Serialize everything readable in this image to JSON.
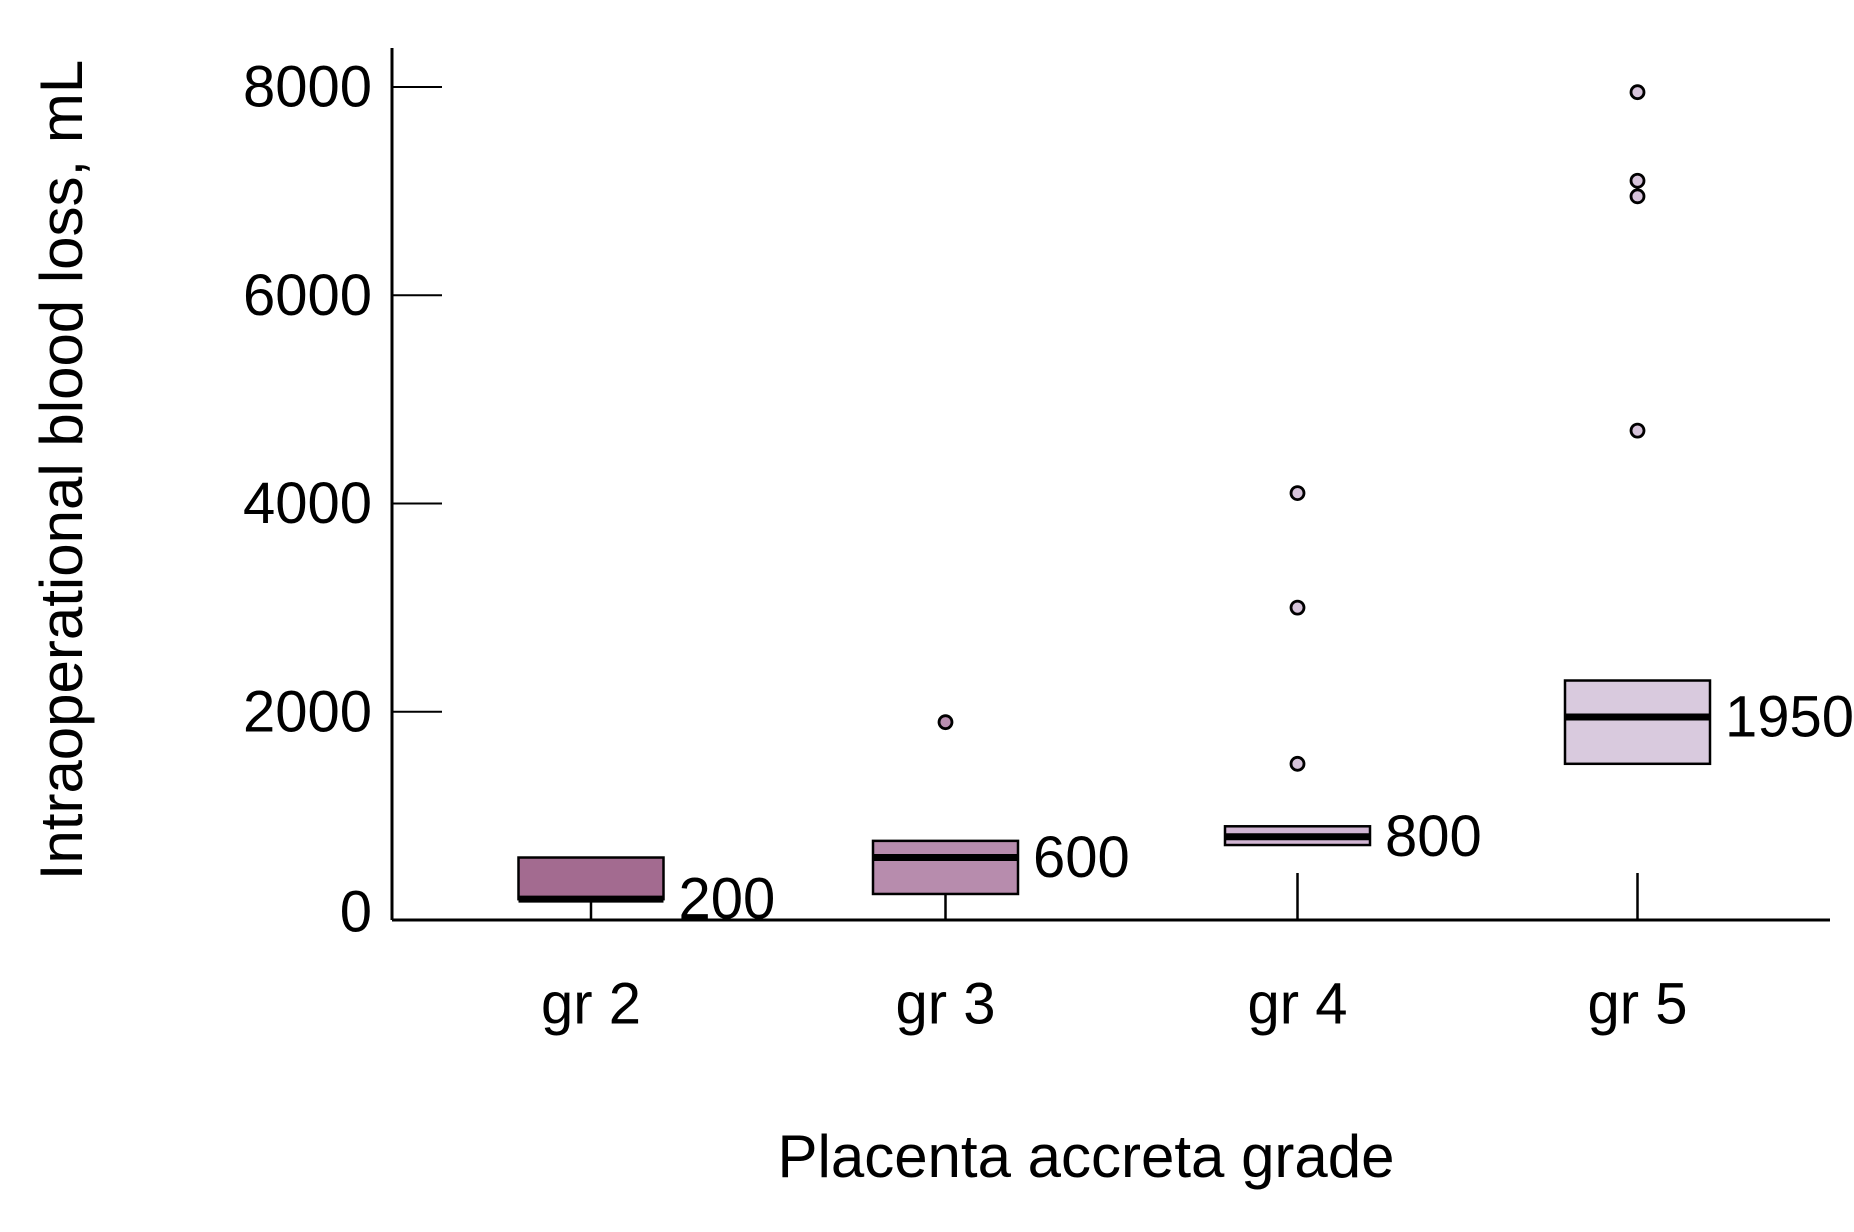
{
  "figure": {
    "background": "#ffffff",
    "line_color": "#000000",
    "text_color": "#000000"
  },
  "chart_data": {
    "type": "box",
    "title": "",
    "xlabel": "Placenta accreta grade",
    "ylabel": "Intraoperational blood loss, mL",
    "ylim": [
      0,
      8400
    ],
    "yticks": [
      0,
      2000,
      4000,
      6000,
      8000
    ],
    "ytick_labels": [
      "0",
      "2000",
      "4000",
      "6000",
      "8000"
    ],
    "grid": "off",
    "legend": "none",
    "categories": [
      "gr 2",
      "gr 3",
      "gr 4",
      "gr 5"
    ],
    "boxes": [
      {
        "category": "gr 2",
        "q1": 200,
        "median": 200,
        "q3": 600,
        "median_label": "200",
        "fill": "#a36b90",
        "outliers": [],
        "outlier_fill": "#b98fb0"
      },
      {
        "category": "gr 3",
        "q1": 250,
        "median": 600,
        "q3": 760,
        "median_label": "600",
        "fill": "#b78cad",
        "outliers": [
          1900
        ],
        "outlier_fill": "#b98fb0"
      },
      {
        "category": "gr 4",
        "q1": 720,
        "median": 800,
        "q3": 900,
        "median_label": "800",
        "fill": "#d1b5d3",
        "outliers": [
          1500,
          3000,
          4100
        ],
        "outlier_fill": "#d6c3da"
      },
      {
        "category": "gr 5",
        "q1": 1500,
        "median": 1950,
        "q3": 2300,
        "median_label": "1950",
        "fill": "#d9cade",
        "outliers": [
          4700,
          6950,
          7100,
          7950
        ],
        "outlier_fill": "#d6c3da"
      }
    ]
  }
}
